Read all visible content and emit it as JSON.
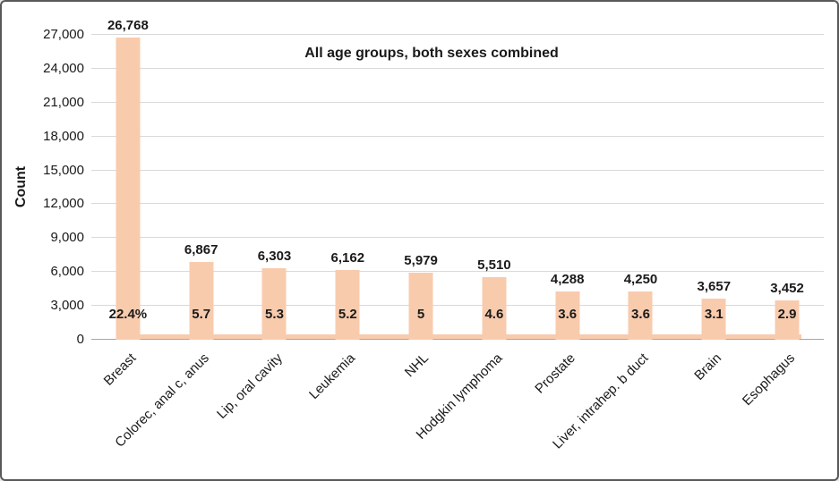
{
  "chart_data": {
    "type": "bar",
    "title": "All age groups, both sexes combined",
    "ylabel": "Count",
    "ylim": [
      0,
      27000
    ],
    "ytick_step": 3000,
    "ytick_labels": [
      "0",
      "3,000",
      "6,000",
      "9,000",
      "12,000",
      "15,000",
      "18,000",
      "21,000",
      "24,000",
      "27,000"
    ],
    "grid": true,
    "legend": null,
    "categories": [
      "Breast",
      "Colorec, anal c, anus",
      "Lip, oral cavity",
      "Leukemia",
      "NHL",
      "Hodgkin lymphoma",
      "Prostate",
      "Liver, intrahep. b duct",
      "Brain",
      "Esophagus"
    ],
    "series": [
      {
        "name": "count",
        "values": [
          26768,
          6867,
          6303,
          6162,
          5979,
          5510,
          4288,
          4250,
          3657,
          3452
        ],
        "labels": [
          "26,768",
          "6,867",
          "6,303",
          "6,162",
          "5,979",
          "5,510",
          "4,288",
          "4,250",
          "3,657",
          "3,452"
        ]
      },
      {
        "name": "percent-of-total",
        "labels": [
          "22.4%",
          "5.7",
          "5.3",
          "5.2",
          "5",
          "4.6",
          "3.6",
          "3.6",
          "3.1",
          "2.9"
        ]
      }
    ],
    "colors": {
      "bar_fill": "#f8cbad",
      "gridline": "#d9d9d9",
      "axis_line": "#a6a6a6",
      "text": "#1a1a1a",
      "frame_border": "#595959"
    }
  }
}
